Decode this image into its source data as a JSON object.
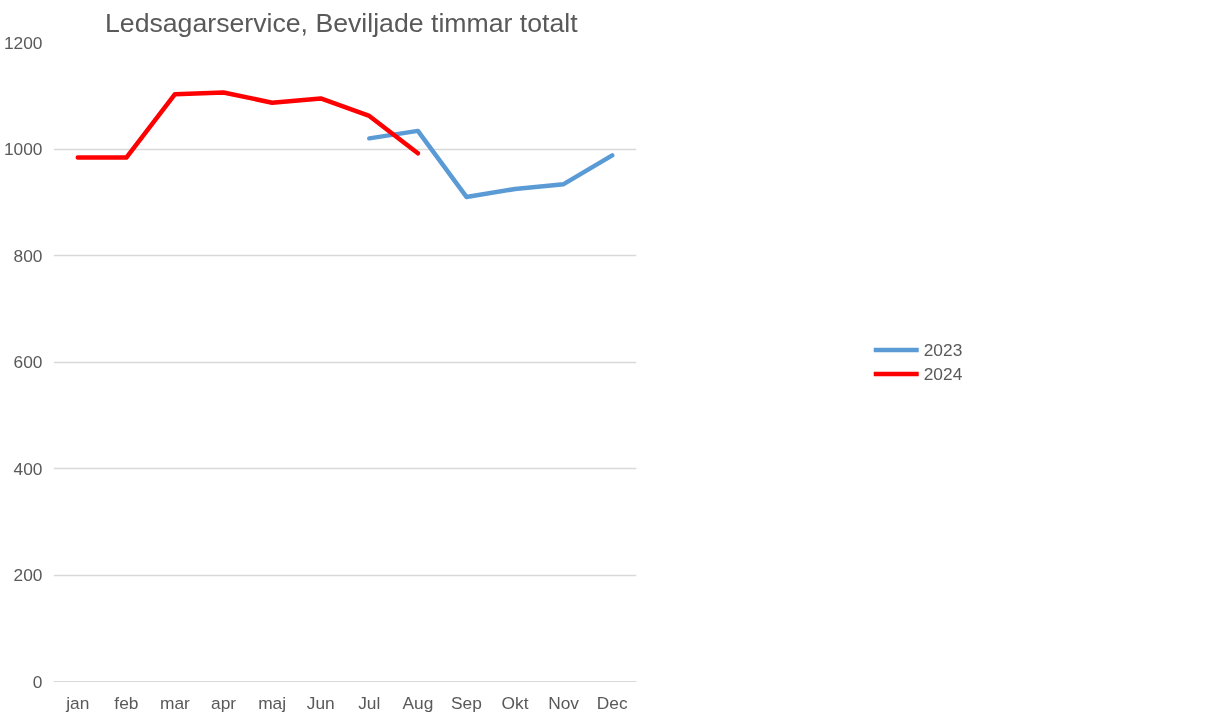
{
  "chart_data": {
    "type": "line",
    "title": "Ledsagarservice,  Beviljade timmar totalt",
    "categories": [
      "jan",
      "feb",
      "mar",
      "apr",
      "maj",
      "Jun",
      "Jul",
      "Aug",
      "Sep",
      "Okt",
      "Nov",
      "Dec"
    ],
    "series": [
      {
        "name": "2023",
        "color": "#5b9bd5",
        "values": [
          null,
          null,
          null,
          null,
          null,
          null,
          1020,
          1034,
          910,
          925,
          934,
          988
        ]
      },
      {
        "name": "2024",
        "color": "#ff0000",
        "values": [
          984,
          984,
          1103,
          1106,
          1087,
          1095,
          1062,
          992,
          null,
          null,
          null,
          null
        ]
      }
    ],
    "ylim": [
      0,
      1200
    ],
    "yticks": [
      0,
      200,
      400,
      600,
      800,
      1000,
      1200
    ],
    "grid": "y",
    "legend": "right",
    "marker": "none",
    "line_style": "solid"
  }
}
